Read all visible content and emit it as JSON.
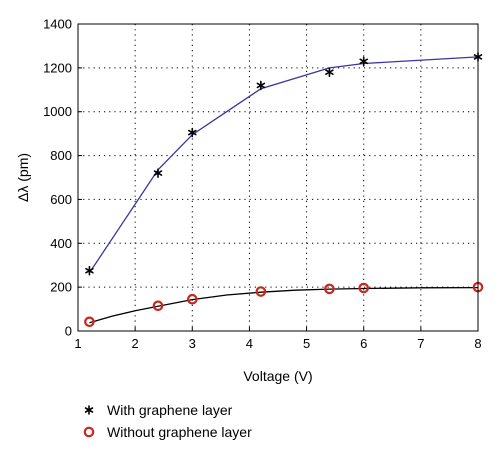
{
  "chart_data": {
    "type": "scatter",
    "title": "",
    "xlabel": "Voltage (V)",
    "ylabel": "Δλ (pm)",
    "xlim": [
      1,
      8
    ],
    "ylim": [
      0,
      1400
    ],
    "xticks": [
      "1",
      "2",
      "3",
      "4",
      "5",
      "6",
      "7",
      "8"
    ],
    "yticks": [
      "0",
      "200",
      "400",
      "600",
      "800",
      "1000",
      "1200",
      "1400"
    ],
    "grid": true,
    "legend_position": "bottom-left",
    "series": [
      {
        "name": "With graphene layer",
        "marker": "asterisk",
        "color": "#000000",
        "line_color": "#3a35a0",
        "x": [
          1.2,
          2.4,
          3.0,
          4.2,
          5.4,
          6.0,
          8.0
        ],
        "y": [
          275,
          720,
          905,
          1120,
          1180,
          1230,
          1250
        ],
        "fit_x": [
          1.2,
          2.4,
          3.0,
          4.2,
          5.4,
          6.0,
          8.0
        ],
        "fit_y": [
          265,
          735,
          895,
          1105,
          1200,
          1220,
          1250
        ]
      },
      {
        "name": "Without graphene layer",
        "marker": "circle",
        "color": "#c8281e",
        "line_color": "#000000",
        "x": [
          1.2,
          2.4,
          3.0,
          4.2,
          5.4,
          6.0,
          8.0
        ],
        "y": [
          42,
          115,
          145,
          180,
          192,
          196,
          200
        ],
        "fit_x": [
          1.2,
          1.6,
          2.0,
          2.4,
          3.0,
          3.6,
          4.2,
          4.8,
          5.4,
          6.0,
          7.0,
          8.0
        ],
        "fit_y": [
          38,
          68,
          92,
          113,
          143,
          164,
          177,
          186,
          191,
          194,
          197,
          198
        ]
      }
    ]
  }
}
